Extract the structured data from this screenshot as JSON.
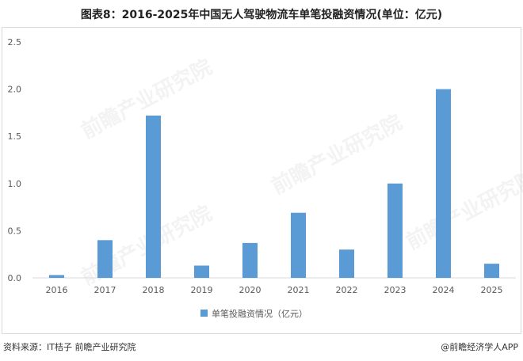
{
  "title": "图表8：2016-2025年中国无人驾驶物流车单笔投融资情况(单位：亿元)",
  "source": "资料来源：IT桔子 前瞻产业研究院",
  "brand": "@前瞻经济学人APP",
  "watermark": "前瞻产业研究院",
  "colors": {
    "bar": "#5b9bd5",
    "axis": "#d9d9d9",
    "text": "#595959"
  },
  "chart_data": {
    "type": "bar",
    "categories": [
      "2016",
      "2017",
      "2018",
      "2019",
      "2020",
      "2021",
      "2022",
      "2023",
      "2024",
      "2025"
    ],
    "series": [
      {
        "name": "单笔投融资情况（亿元）",
        "values": [
          0.03,
          0.4,
          1.72,
          0.13,
          0.37,
          0.69,
          0.3,
          1.0,
          2.0,
          0.15
        ]
      }
    ],
    "yticks": [
      "0.0",
      "0.5",
      "1.0",
      "1.5",
      "2.0",
      "2.5"
    ],
    "ylim": [
      0,
      2.5
    ],
    "legend_position": "bottom"
  }
}
